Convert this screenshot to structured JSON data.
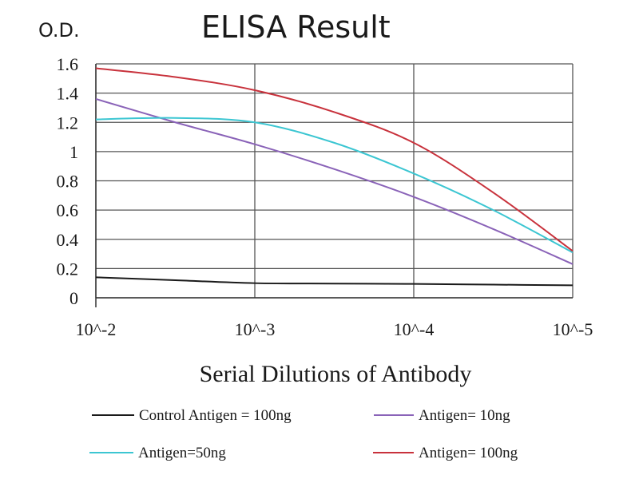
{
  "chart_data": {
    "type": "line",
    "title": "ELISA Result",
    "ylabel": "O.D.",
    "xlabel": "Serial Dilutions of Antibody",
    "x_tick_labels": [
      "10^-2",
      "10^-3",
      "10^-4",
      "10^-5"
    ],
    "y_tick_labels": [
      "0",
      "0.2",
      "0.4",
      "0.6",
      "0.8",
      "1",
      "1.2",
      "1.4",
      "1.6"
    ],
    "ylim": [
      0,
      1.6
    ],
    "x_scale": "log (dilution 10^-2 to 10^-5)",
    "grid": true,
    "legend_position": "bottom",
    "series": [
      {
        "name": "Control Antigen = 100ng",
        "color": "#1a1a1a",
        "x": [
          "10^-2",
          "10^-2.5",
          "10^-3",
          "10^-3.5",
          "10^-4",
          "10^-4.5",
          "10^-5"
        ],
        "values": [
          0.14,
          0.12,
          0.1,
          0.097,
          0.095,
          0.09,
          0.085
        ]
      },
      {
        "name": "Antigen= 10ng",
        "color": "#8a63b8",
        "x": [
          "10^-2",
          "10^-2.5",
          "10^-3",
          "10^-3.5",
          "10^-4",
          "10^-4.5",
          "10^-5"
        ],
        "values": [
          1.36,
          1.2,
          1.05,
          0.88,
          0.69,
          0.47,
          0.23
        ]
      },
      {
        "name": "Antigen=50ng",
        "color": "#3cc6d2",
        "x": [
          "10^-2",
          "10^-2.5",
          "10^-3",
          "10^-3.5",
          "10^-4",
          "10^-4.5",
          "10^-5"
        ],
        "values": [
          1.22,
          1.23,
          1.2,
          1.06,
          0.85,
          0.6,
          0.31
        ]
      },
      {
        "name": "Antigen= 100ng",
        "color": "#c8323c",
        "x": [
          "10^-2",
          "10^-2.5",
          "10^-3",
          "10^-3.5",
          "10^-4",
          "10^-4.5",
          "10^-5"
        ],
        "values": [
          1.57,
          1.51,
          1.42,
          1.27,
          1.06,
          0.72,
          0.32
        ]
      }
    ]
  }
}
